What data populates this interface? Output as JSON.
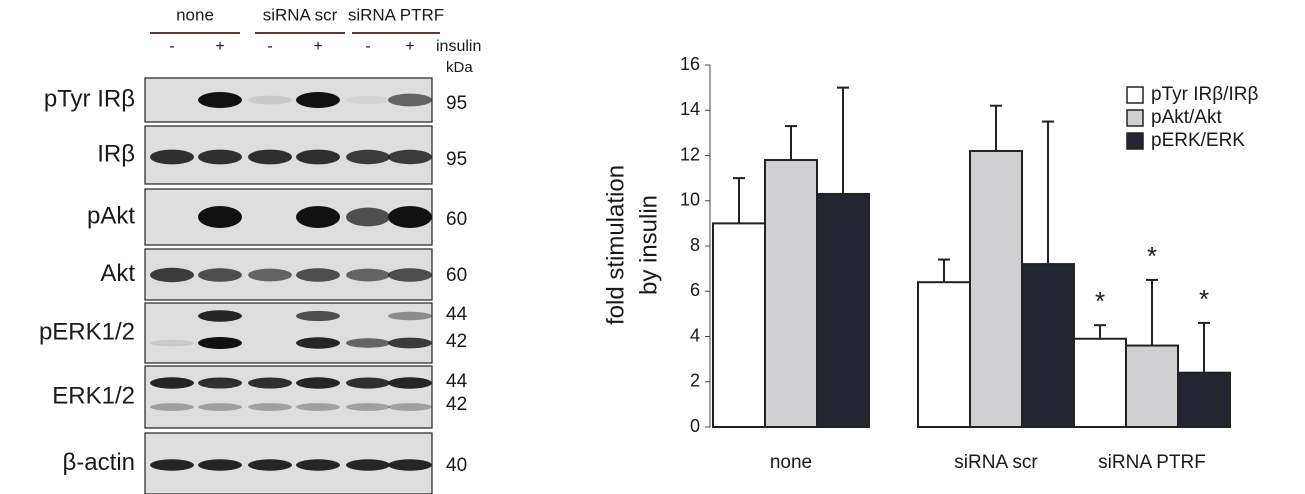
{
  "blot": {
    "groups": [
      "none",
      "siRNA scr",
      "siRNA PTRF"
    ],
    "lanes": [
      "-",
      "+",
      "-",
      "+",
      "-",
      "+"
    ],
    "treatment_label": "insulin",
    "kda_label": "kDa",
    "rows": [
      {
        "label": "pTyr IRβ",
        "kda": [
          "95"
        ]
      },
      {
        "label": "IRβ",
        "kda": [
          "95"
        ]
      },
      {
        "label": "pAkt",
        "kda": [
          "60"
        ]
      },
      {
        "label": "Akt",
        "kda": [
          "60"
        ]
      },
      {
        "label": "pERK1/2",
        "kda": [
          "44",
          "42"
        ]
      },
      {
        "label": "ERK1/2",
        "kda": [
          "44",
          "42"
        ]
      },
      {
        "label": "β-actin",
        "kda": [
          "40"
        ]
      }
    ]
  },
  "chart_data": {
    "type": "bar",
    "y_label": [
      "fold stimulation",
      "by insulin"
    ],
    "categories": [
      "none",
      "siRNA scr",
      "siRNA PTRF"
    ],
    "series": [
      {
        "name": "pTyr IRβ/IRβ",
        "color": "#ffffff",
        "values": [
          9.0,
          6.4,
          3.9
        ],
        "errors": [
          2.0,
          1.0,
          0.6
        ]
      },
      {
        "name": "pAkt/Akt",
        "color": "#d0d0d2",
        "values": [
          11.8,
          12.2,
          3.6
        ],
        "errors": [
          1.5,
          2.0,
          2.9
        ]
      },
      {
        "name": "pERK/ERK",
        "color": "#232630",
        "values": [
          10.3,
          7.2,
          2.4
        ],
        "errors": [
          4.7,
          6.3,
          2.2
        ]
      }
    ],
    "annotations": [
      "*",
      "*",
      "*"
    ],
    "ylim": [
      0,
      16
    ],
    "yticks": [
      0,
      2,
      4,
      6,
      8,
      10,
      12,
      14,
      16
    ],
    "legend": "upper-right"
  }
}
